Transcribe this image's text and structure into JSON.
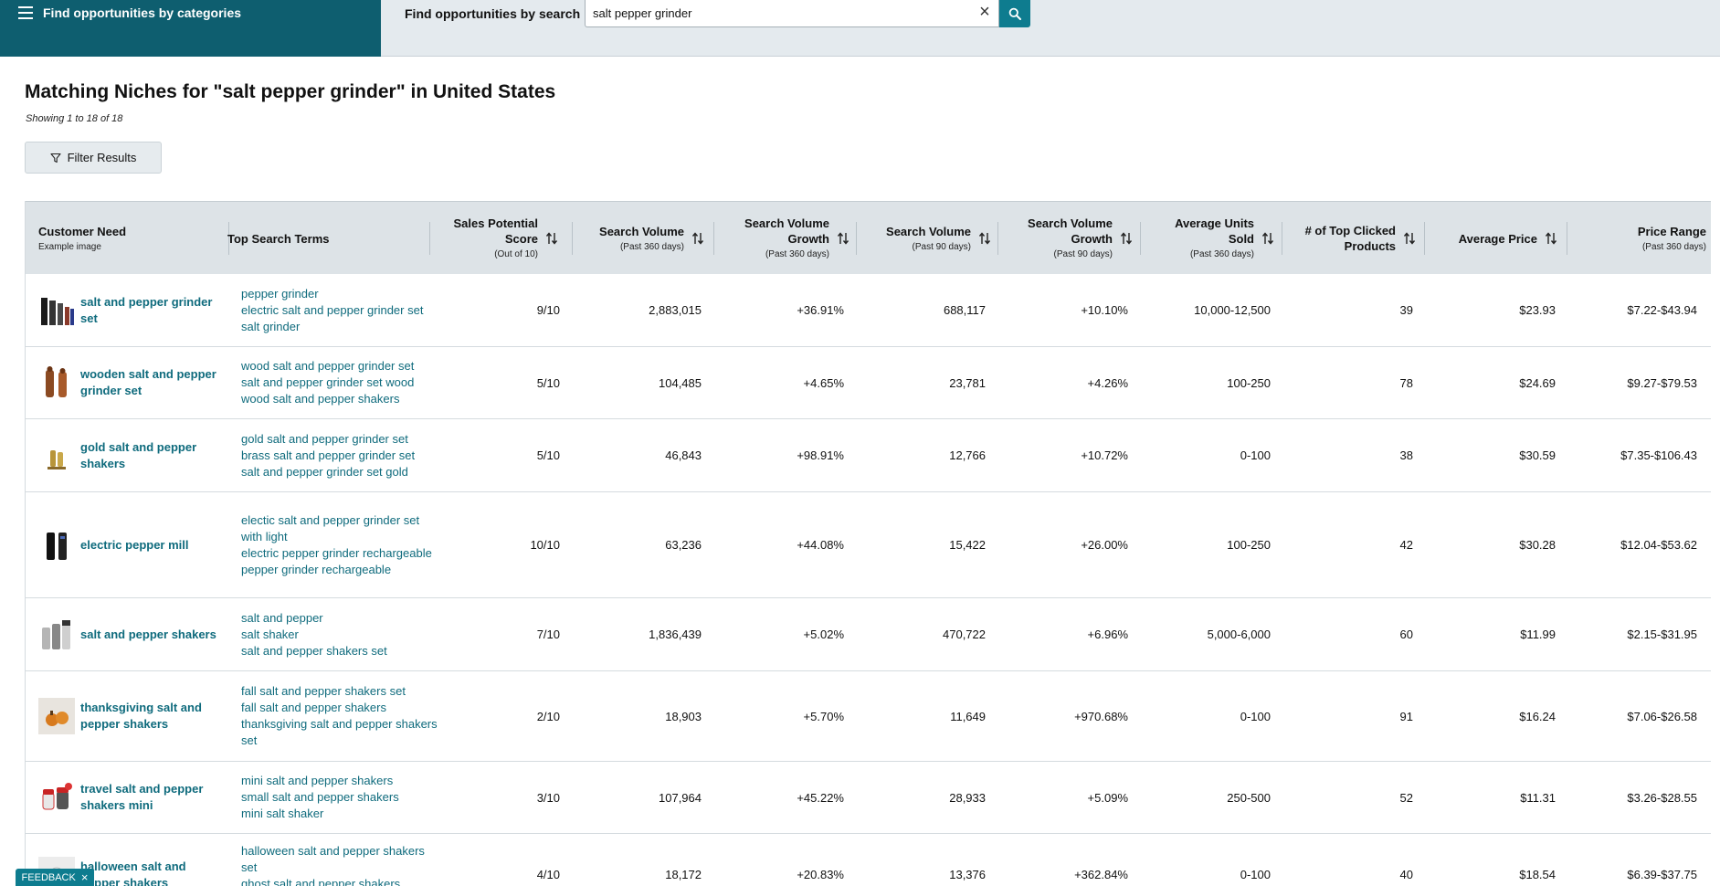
{
  "topbar": {
    "categories_label": "Find opportunities by categories",
    "search_label": "Find opportunities by search",
    "search_value": "salt pepper grinder",
    "clear_icon": "close-icon",
    "search_icon": "search-icon"
  },
  "page": {
    "title": "Matching Niches for \"salt pepper grinder\" in United States",
    "showing": "Showing 1 to 18 of 18",
    "filter_label": "Filter Results"
  },
  "headers": [
    {
      "title": "Customer Need",
      "sub": "Example image"
    },
    {
      "title": "Top Search Terms",
      "sub": ""
    },
    {
      "title": "Sales Potential Score",
      "sub": "(Out of 10)"
    },
    {
      "title": "Search Volume",
      "sub": "(Past 360 days)"
    },
    {
      "title": "Search Volume Growth",
      "sub": "(Past 360 days)"
    },
    {
      "title": "Search Volume",
      "sub": "(Past 90 days)"
    },
    {
      "title": "Search Volume Growth",
      "sub": "(Past 90 days)"
    },
    {
      "title": "Average Units Sold",
      "sub": "(Past 360 days)"
    },
    {
      "title": "# of Top Clicked Products",
      "sub": ""
    },
    {
      "title": "Average Price",
      "sub": ""
    },
    {
      "title": "Price Range",
      "sub": "(Past 360 days)"
    }
  ],
  "rows": [
    {
      "need": "salt and pepper grinder set",
      "terms": [
        "pepper grinder",
        "electric salt and pepper grinder set",
        "salt grinder"
      ],
      "score": "9/10",
      "sv360": "2,883,015",
      "svg360": "+36.91%",
      "sv90": "688,117",
      "svg90": "+10.10%",
      "units": "10,000-12,500",
      "clicked": "39",
      "avg_price": "$23.93",
      "range": "$7.22-$43.94"
    },
    {
      "need": "wooden salt and pepper grinder set",
      "terms": [
        "wood salt and pepper grinder set",
        "salt and pepper grinder set wood",
        "wood salt and pepper shakers"
      ],
      "score": "5/10",
      "sv360": "104,485",
      "svg360": "+4.65%",
      "sv90": "23,781",
      "svg90": "+4.26%",
      "units": "100-250",
      "clicked": "78",
      "avg_price": "$24.69",
      "range": "$9.27-$79.53"
    },
    {
      "need": "gold salt and pepper shakers",
      "terms": [
        "gold salt and pepper grinder set",
        "brass salt and pepper grinder set",
        "salt and pepper grinder set gold"
      ],
      "score": "5/10",
      "sv360": "46,843",
      "svg360": "+98.91%",
      "sv90": "12,766",
      "svg90": "+10.72%",
      "units": "0-100",
      "clicked": "38",
      "avg_price": "$30.59",
      "range": "$7.35-$106.43"
    },
    {
      "need": "electric pepper mill",
      "terms": [
        "electic salt and pepper grinder set with light",
        "electric pepper grinder rechargeable",
        "pepper grinder rechargeable"
      ],
      "score": "10/10",
      "sv360": "63,236",
      "svg360": "+44.08%",
      "sv90": "15,422",
      "svg90": "+26.00%",
      "units": "100-250",
      "clicked": "42",
      "avg_price": "$30.28",
      "range": "$12.04-$53.62"
    },
    {
      "need": "salt and pepper shakers",
      "terms": [
        "salt and pepper",
        "salt shaker",
        "salt and pepper shakers set"
      ],
      "score": "7/10",
      "sv360": "1,836,439",
      "svg360": "+5.02%",
      "sv90": "470,722",
      "svg90": "+6.96%",
      "units": "5,000-6,000",
      "clicked": "60",
      "avg_price": "$11.99",
      "range": "$2.15-$31.95"
    },
    {
      "need": "thanksgiving salt and pepper shakers",
      "terms": [
        "fall salt and pepper shakers set",
        "fall salt and pepper shakers",
        "thanksgiving salt and pepper shakers set"
      ],
      "score": "2/10",
      "sv360": "18,903",
      "svg360": "+5.70%",
      "sv90": "11,649",
      "svg90": "+970.68%",
      "units": "0-100",
      "clicked": "91",
      "avg_price": "$16.24",
      "range": "$7.06-$26.58"
    },
    {
      "need": "travel salt and pepper shakers mini",
      "terms": [
        "mini salt and pepper shakers",
        "small salt and pepper shakers",
        "mini salt shaker"
      ],
      "score": "3/10",
      "sv360": "107,964",
      "svg360": "+45.22%",
      "sv90": "28,933",
      "svg90": "+5.09%",
      "units": "250-500",
      "clicked": "52",
      "avg_price": "$11.31",
      "range": "$3.26-$28.55"
    },
    {
      "need": "halloween salt and pepper shakers",
      "terms": [
        "halloween salt and pepper shakers set",
        "ghost salt and pepper shakers"
      ],
      "score": "4/10",
      "sv360": "18,172",
      "svg360": "+20.83%",
      "sv90": "13,376",
      "svg90": "+362.84%",
      "units": "0-100",
      "clicked": "40",
      "avg_price": "$18.54",
      "range": "$6.39-$37.75"
    }
  ],
  "feedback": {
    "label": "FEEDBACK",
    "close": "×"
  }
}
